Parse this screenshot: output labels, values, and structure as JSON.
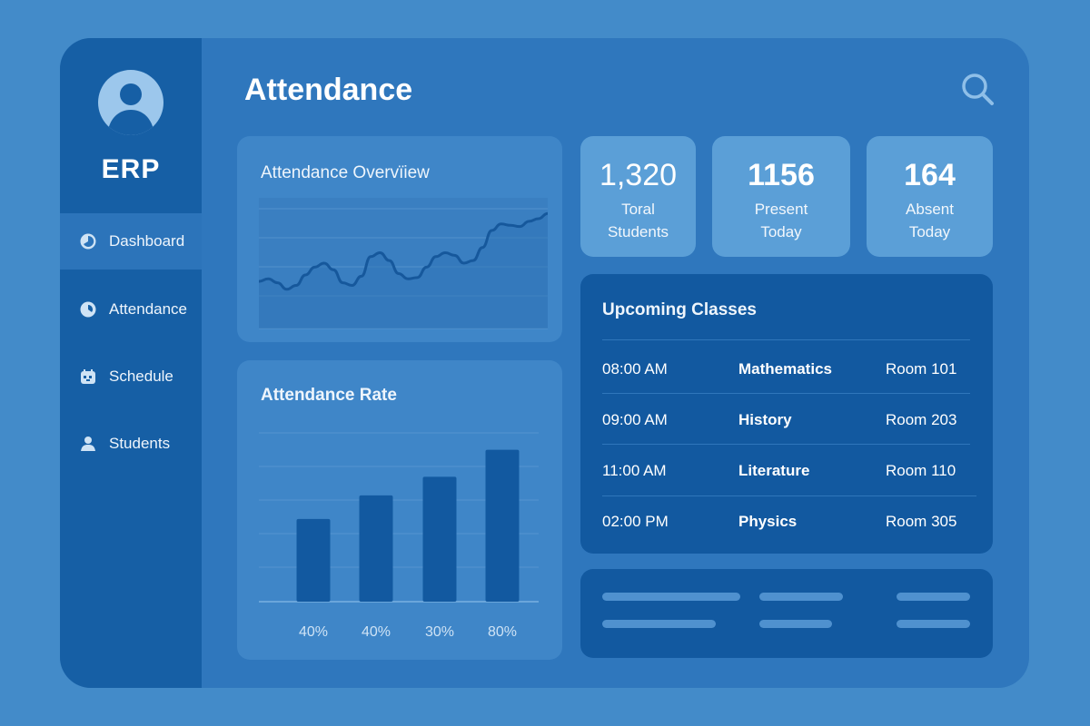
{
  "app": {
    "brand": "ERP"
  },
  "sidebar": {
    "items": [
      {
        "label": "Dashboard",
        "icon": "dashboard-icon"
      },
      {
        "label": "Attendance",
        "icon": "attendance-icon"
      },
      {
        "label": "Schedule",
        "icon": "schedule-icon"
      },
      {
        "label": "Students",
        "icon": "students-icon"
      }
    ]
  },
  "header": {
    "title": "Attendance",
    "search_icon": "search-icon"
  },
  "overview": {
    "title": "Attendance Overvїiew"
  },
  "rate": {
    "title": "Attendance Rate"
  },
  "stats": [
    {
      "value": "1,320",
      "label_line1": "Toral",
      "label_line2": "Students"
    },
    {
      "value": "1156",
      "label_line1": "Present",
      "label_line2": "Today"
    },
    {
      "value": "164",
      "label_line1": "Absent",
      "label_line2": "Today"
    }
  ],
  "classes": {
    "title": "Upcoming Classes",
    "rows": [
      {
        "time": "08:00 AM",
        "subject": "Mathematics",
        "room": "Room 101"
      },
      {
        "time": "09:00 AM",
        "subject": "History",
        "room": "Room 203"
      },
      {
        "time": "11:00 AM",
        "subject": "Literature",
        "room": "Room 110"
      },
      {
        "time": "02:00 PM",
        "subject": "Physics",
        "room": "Room 305"
      }
    ]
  },
  "chart_data": [
    {
      "type": "line",
      "title": "Attendance Overvїiew",
      "x": [
        0,
        1,
        2,
        3,
        4,
        5,
        6,
        7,
        8,
        9,
        10,
        11,
        12,
        13,
        14,
        15,
        16,
        17,
        18,
        19,
        20,
        21,
        22,
        23,
        24,
        25,
        26,
        27,
        28,
        29,
        30,
        31
      ],
      "values": [
        36,
        38,
        35,
        30,
        33,
        41,
        47,
        50,
        45,
        35,
        33,
        40,
        55,
        58,
        52,
        42,
        38,
        39,
        47,
        55,
        58,
        56,
        50,
        52,
        62,
        75,
        80,
        79,
        78,
        82,
        84,
        88
      ],
      "ylim": [
        0,
        100
      ],
      "xlabel": "",
      "ylabel": "",
      "grid": true
    },
    {
      "type": "bar",
      "title": "Attendance Rate",
      "categories": [
        "40%",
        "40%",
        "30%",
        "80%"
      ],
      "values": [
        49,
        63,
        74,
        90
      ],
      "ylim": [
        0,
        100
      ],
      "xlabel": "",
      "ylabel": "",
      "grid": true
    }
  ]
}
